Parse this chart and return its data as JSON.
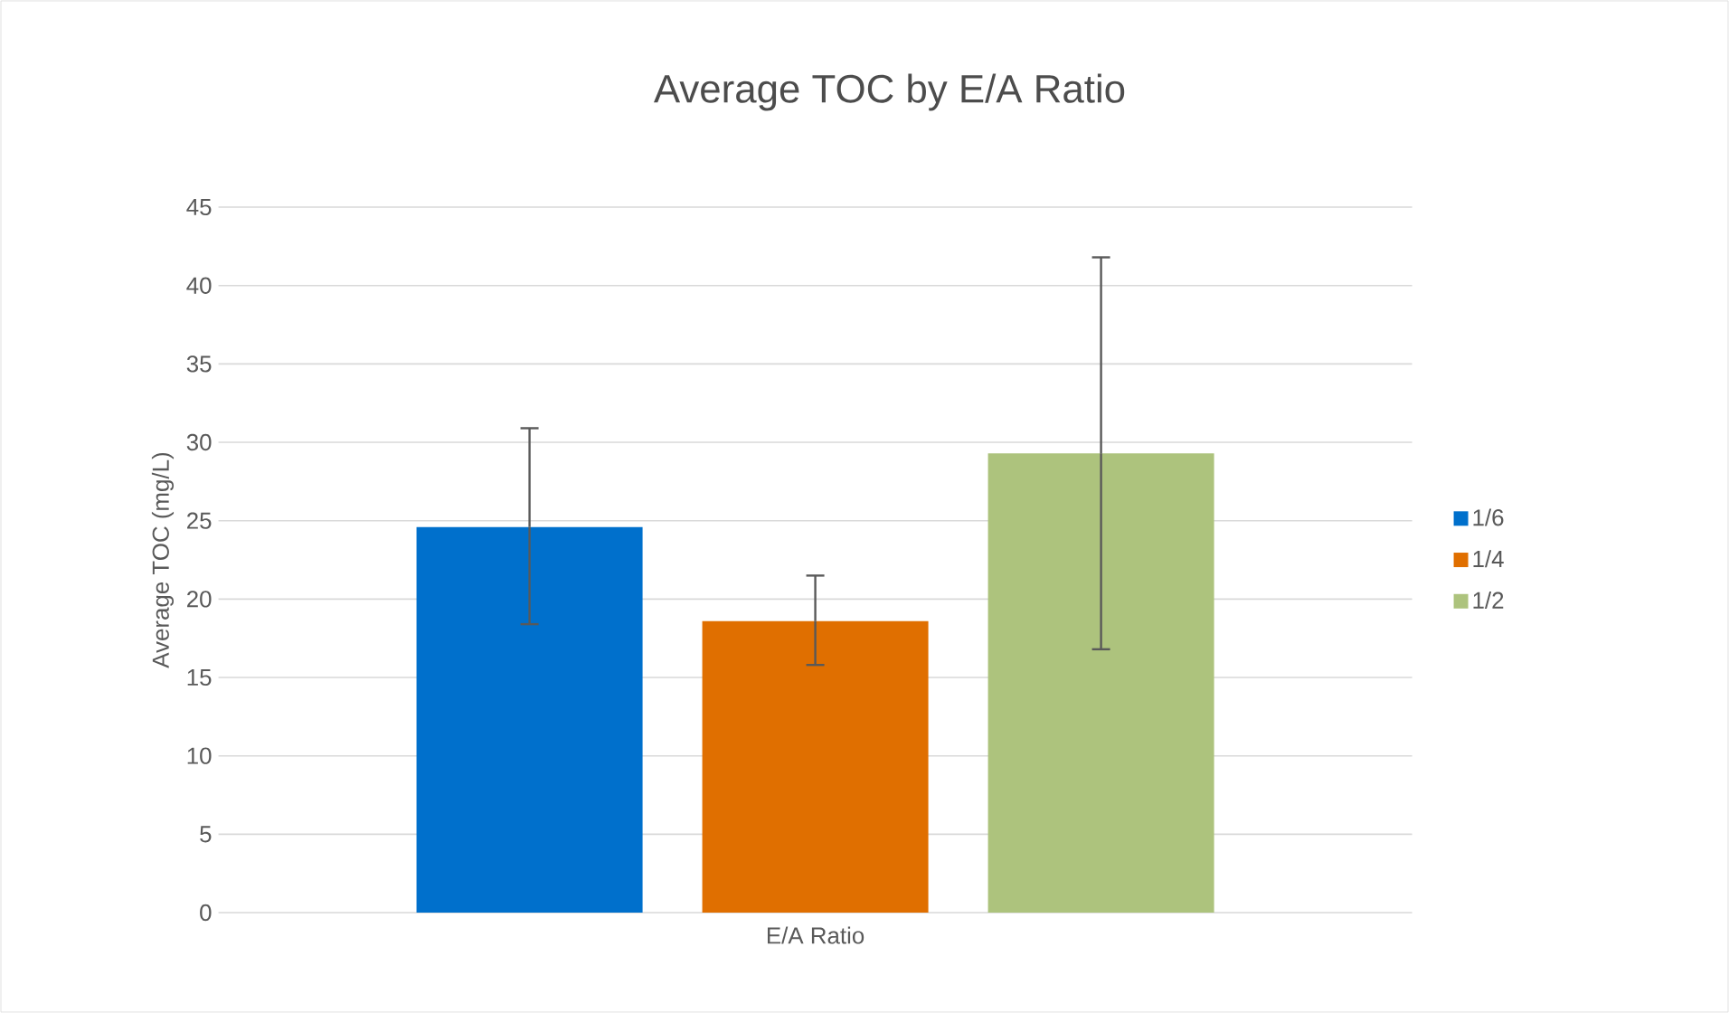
{
  "chart_data": {
    "type": "bar",
    "title": "Average TOC by E/A Ratio",
    "ylabel": "Average TOC (mg/L)",
    "categories": [
      "E/A Ratio"
    ],
    "series": [
      {
        "name": "1/6",
        "color": "#0070cc",
        "values": [
          24.6
        ],
        "errors": [
          [
            18.4,
            30.9
          ]
        ]
      },
      {
        "name": "1/4",
        "color": "#e06f00",
        "values": [
          18.6
        ],
        "errors": [
          [
            15.8,
            21.5
          ]
        ]
      },
      {
        "name": "1/2",
        "color": "#adc37d",
        "values": [
          29.3
        ],
        "errors": [
          [
            16.8,
            41.8
          ]
        ]
      }
    ],
    "ylim": [
      0,
      45
    ],
    "yticks": [
      0,
      5,
      10,
      15,
      20,
      25,
      30,
      35,
      40,
      45
    ],
    "grid": "y",
    "legend": "right"
  }
}
